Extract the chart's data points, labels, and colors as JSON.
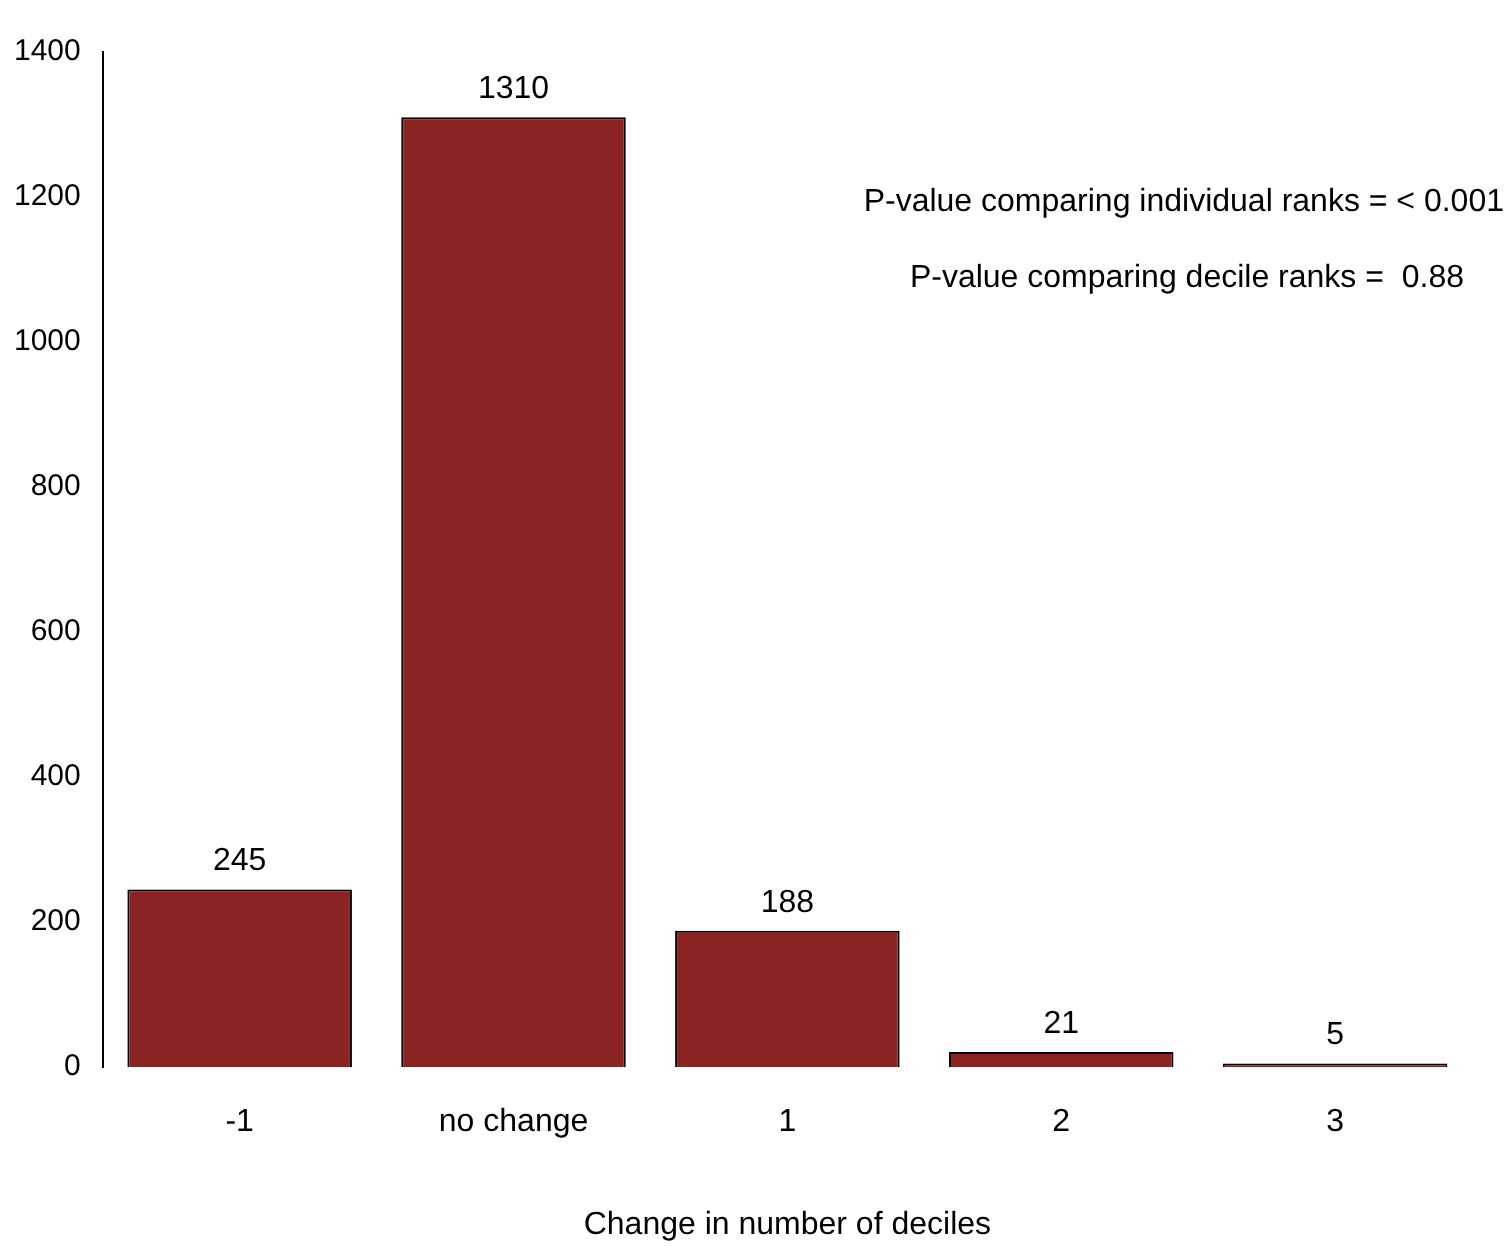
{
  "chart_data": {
    "type": "bar",
    "xlabel": "Change in number of deciles",
    "categories": [
      "-1",
      "no change",
      "1",
      "2",
      "3"
    ],
    "values": [
      245,
      1310,
      188,
      21,
      5
    ],
    "color": "#8b2323",
    "ylim": [
      0,
      1400
    ],
    "yticks": [
      0,
      200,
      400,
      600,
      800,
      1000,
      1200,
      1400
    ],
    "grid": false,
    "legend": false,
    "data_labels": true,
    "annotations": [
      "P-value comparing individual ranks = < 0.001",
      "P-value comparing decile ranks =  0.88"
    ]
  }
}
